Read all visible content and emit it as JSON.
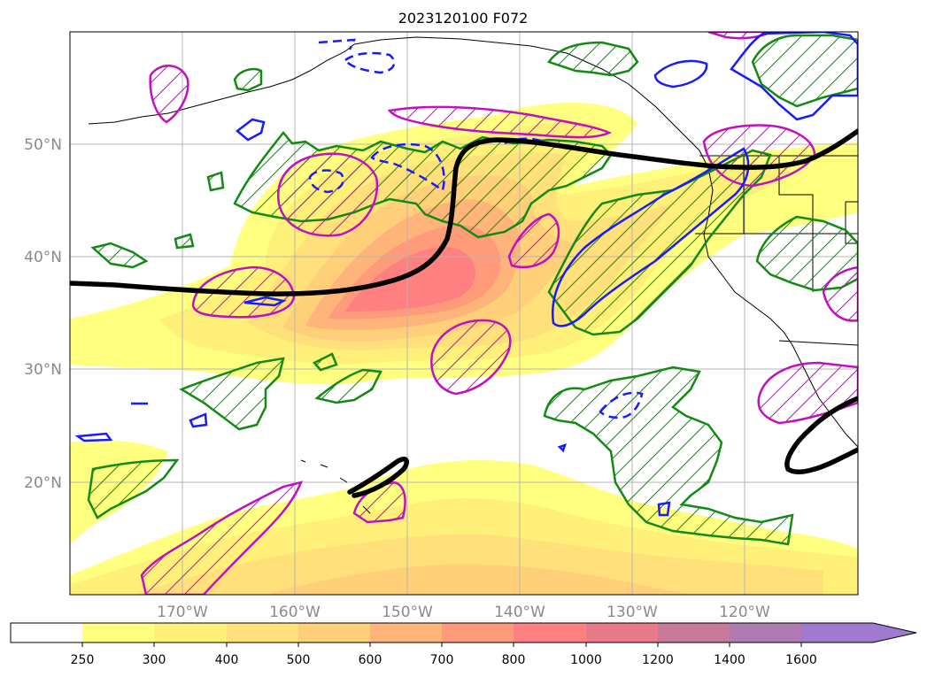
{
  "title": "2023120100 F072",
  "map": {
    "lat_labels": [
      "50°N",
      "40°N",
      "30°N",
      "20°N"
    ],
    "lon_labels": [
      "170°W",
      "160°W",
      "150°W",
      "140°W",
      "130°W",
      "120°W"
    ]
  },
  "colorbar": {
    "labels": [
      "250",
      "300",
      "400",
      "500",
      "600",
      "700",
      "800",
      "1000",
      "1200",
      "1400",
      "1600"
    ],
    "colors": [
      "#ffffff",
      "#ffff80",
      "#fff07a",
      "#ffe07a",
      "#ffcf7a",
      "#ffb47a",
      "#ff9a7a",
      "#ff8080",
      "#e87a8a",
      "#c87a9a",
      "#b07ab4",
      "#9f7ad0"
    ]
  },
  "legend_colors": {
    "black_contour": "#000000",
    "green_hatch": "#138a13",
    "magenta_hatch": "#c010c0",
    "blue_contour": "#1a1aff"
  }
}
